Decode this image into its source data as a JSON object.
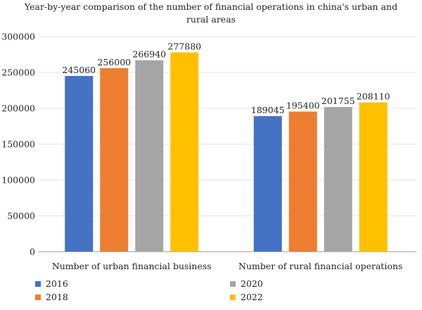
{
  "chart_data": {
    "type": "bar",
    "title": "Year-by-year comparison of the number of financial operations in china's urban and rural areas",
    "title_lines": [
      "Year-by-year comparison of the number of financial operations in china's urban and",
      "rural areas"
    ],
    "categories": [
      "Number of urban financial business",
      "Number of rural financial operations"
    ],
    "series": [
      {
        "name": "2016",
        "color": "#4472c4",
        "values": [
          245060,
          189045
        ]
      },
      {
        "name": "2018",
        "color": "#ed7d31",
        "values": [
          256000,
          195400
        ]
      },
      {
        "name": "2020",
        "color": "#a5a5a5",
        "values": [
          266940,
          201755
        ]
      },
      {
        "name": "2022",
        "color": "#ffc000",
        "values": [
          277880,
          208110
        ]
      }
    ],
    "ylim": [
      0,
      300000
    ],
    "yticks": [
      0,
      50000,
      100000,
      150000,
      200000,
      250000,
      300000
    ],
    "xlabel": "",
    "ylabel": "",
    "grid": true,
    "legend_position": "bottom"
  }
}
